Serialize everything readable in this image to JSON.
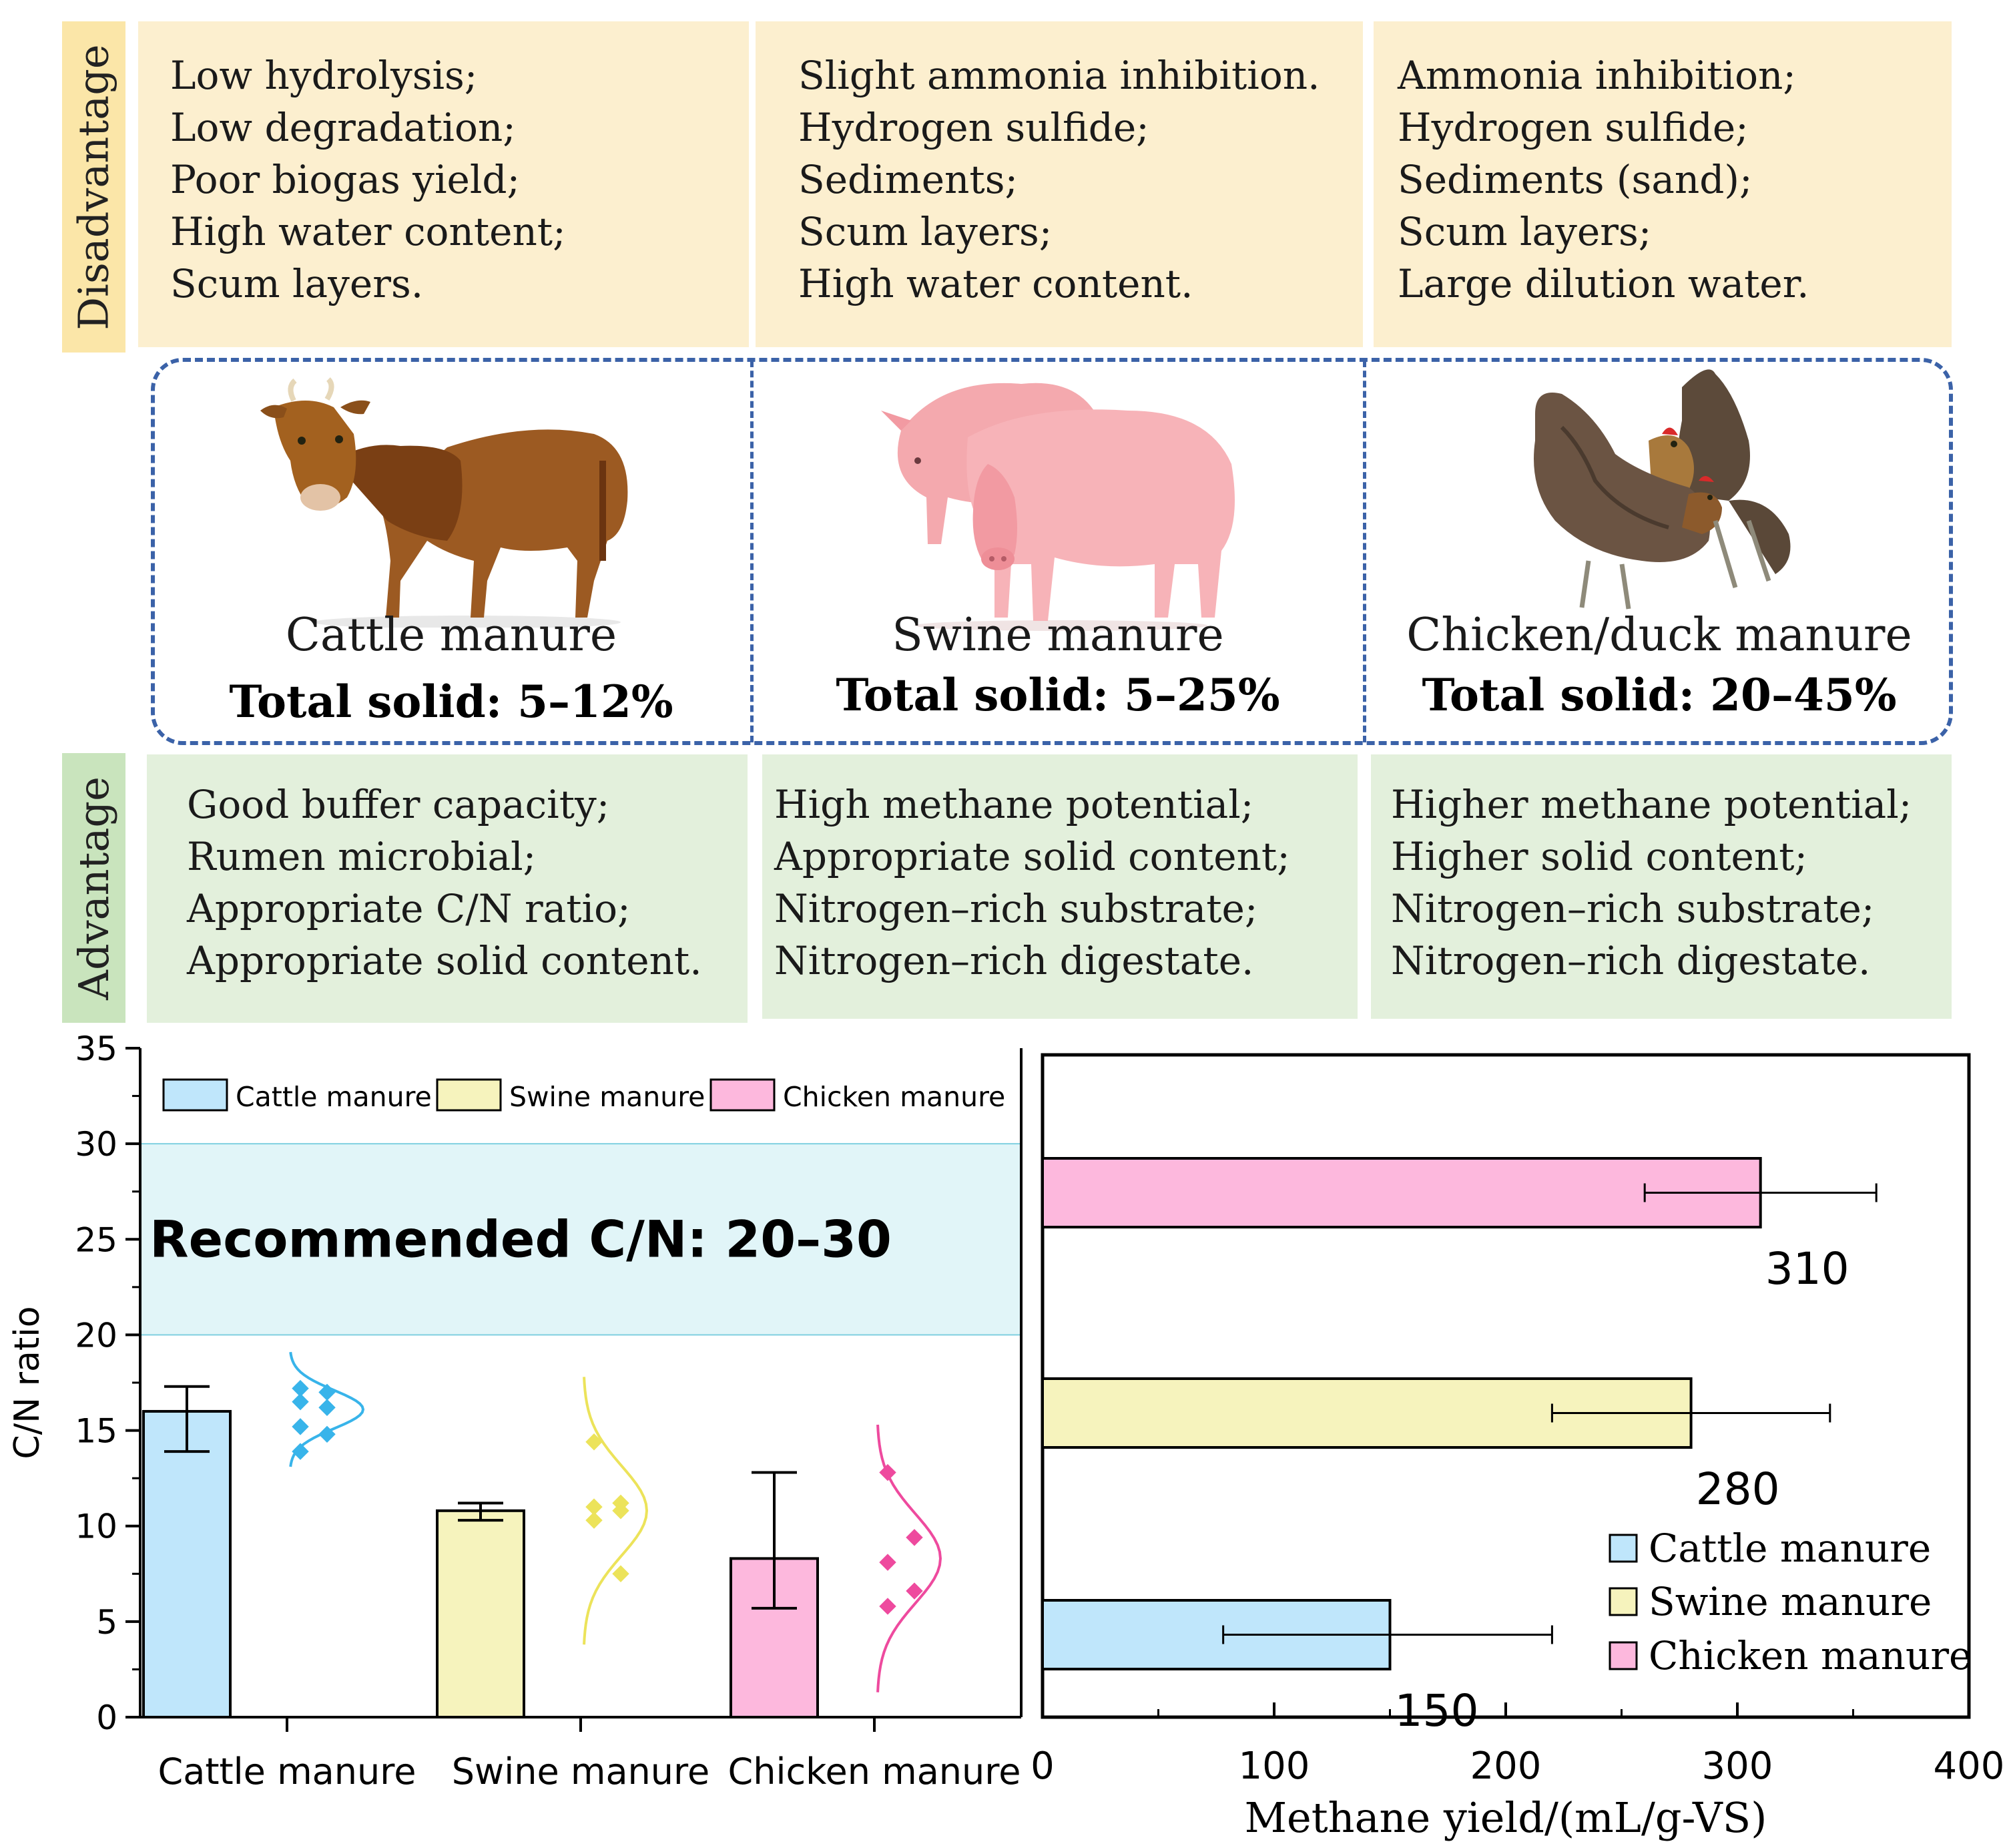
{
  "disadvantage_label": "Disadvantage",
  "advantage_label": "Advantage",
  "disadvantages": [
    [
      "Low hydrolysis;",
      "Low degradation;",
      "Poor biogas yield;",
      "High water content;",
      "Scum layers."
    ],
    [
      "Slight ammonia inhibition.",
      "Hydrogen sulfide;",
      "Sediments;",
      "Scum layers;",
      "High water content."
    ],
    [
      "Ammonia inhibition;",
      "Hydrogen sulfide;",
      "Sediments (sand);",
      "Scum layers;",
      "Large dilution water."
    ]
  ],
  "animals": [
    {
      "name": "Cattle manure",
      "ts_label": "Total solid",
      "ts_value": ": 5–12%",
      "icon": "cow-icon"
    },
    {
      "name": "Swine manure",
      "ts_label": "Total solid",
      "ts_value": ": 5–25%",
      "icon": "pig-icon"
    },
    {
      "name": "Chicken/duck manure",
      "ts_label": "Total solid",
      "ts_value": ": 20–45%",
      "icon": "chicken-icon"
    }
  ],
  "advantages": [
    [
      "Good buffer capacity;",
      "Rumen microbial;",
      "Appropriate C/N ratio;",
      "Appropriate solid content."
    ],
    [
      "High methane potential;",
      "Appropriate solid content;",
      "Nitrogen–rich substrate;",
      "Nitrogen–rich digestate."
    ],
    [
      "Higher methane potential;",
      "Higher solid content;",
      "Nitrogen–rich substrate;",
      "Nitrogen–rich digestate."
    ]
  ],
  "colors": {
    "cattle": "#bfe6fb",
    "swine": "#f6f3bd",
    "chicken": "#fdb8dd",
    "cattle_dot": "#38b4ea",
    "swine_dot": "#ece35a",
    "chicken_dot": "#ee4a9e"
  },
  "chart_data": [
    {
      "type": "bar",
      "title": "",
      "xlabel": "",
      "ylabel": "C/N ratio",
      "ylim": [
        0,
        35
      ],
      "yticks": [
        "0",
        "5",
        "10",
        "15",
        "20",
        "25",
        "30",
        "35"
      ],
      "categories": [
        "Cattle manure",
        "Swine manure",
        "Chicken manure"
      ],
      "values": [
        16.0,
        10.8,
        8.3
      ],
      "error_low": [
        13.9,
        10.3,
        5.7
      ],
      "error_high": [
        17.3,
        11.2,
        12.8
      ],
      "points": [
        [
          17.2,
          17.0,
          16.5,
          16.2,
          15.2,
          14.8,
          13.9
        ],
        [
          14.4,
          11.2,
          11.0,
          10.8,
          10.3,
          7.5
        ],
        [
          12.8,
          9.4,
          8.1,
          6.6,
          5.8
        ]
      ],
      "legend": [
        "Cattle manure",
        "Swine manure",
        "Chicken manure"
      ],
      "band": {
        "from": 20,
        "to": 30,
        "label": "Recommended C/N: 20–30"
      }
    },
    {
      "type": "bar",
      "orientation": "horizontal",
      "title": "",
      "xlabel": "Methane yield/(mL/g-VS)",
      "ylabel": "",
      "xlim": [
        0,
        400
      ],
      "xticks": [
        "0",
        "100",
        "200",
        "300",
        "400"
      ],
      "categories": [
        "Cattle manure",
        "Swine manure",
        "Chicken manure"
      ],
      "values": [
        150,
        280,
        310
      ],
      "labels": [
        "150",
        "280",
        "310"
      ],
      "error_low": [
        78,
        220,
        260
      ],
      "error_high": [
        220,
        340,
        360
      ],
      "legend": [
        "Cattle manure",
        "Swine manure",
        "Chicken manure"
      ]
    }
  ]
}
